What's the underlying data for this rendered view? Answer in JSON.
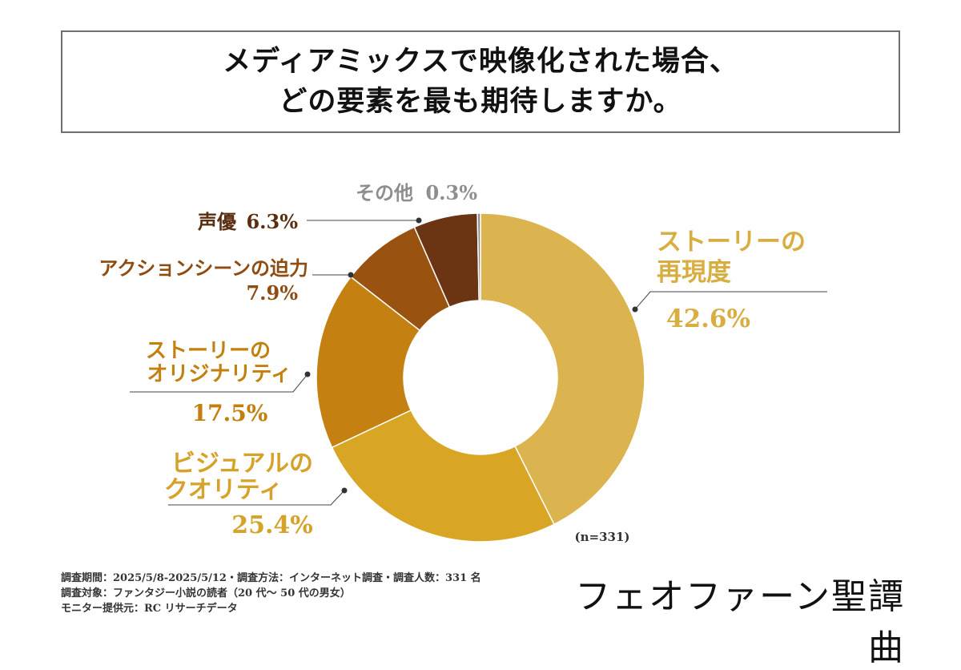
{
  "title": {
    "line1": "メディアミックスで映像化された場合、",
    "line2": "どの要素を最も期待しますか。"
  },
  "chart_data": {
    "type": "pie",
    "subtype": "donut",
    "title": "メディアミックスで映像化された場合、どの要素を最も期待しますか。",
    "sample_size_label": "(n=331)",
    "slices": [
      {
        "label_lines": [
          "ストーリーの",
          "再現度"
        ],
        "value": 42.6,
        "value_label": "42.6%",
        "color": "#DBB44F",
        "text_color": "#D8AE42"
      },
      {
        "label_lines": [
          "ビジュアルの",
          "クオリティ"
        ],
        "value": 25.4,
        "value_label": "25.4%",
        "color": "#D9A525",
        "text_color": "#D6A22A"
      },
      {
        "label_lines": [
          "ストーリーの",
          "オリジナリティ"
        ],
        "value": 17.5,
        "value_label": "17.5%",
        "color": "#C58012",
        "text_color": "#C3800F"
      },
      {
        "label_lines": [
          "アクションシーンの迫力"
        ],
        "value": 7.9,
        "value_label": "7.9%",
        "color": "#9A5210",
        "text_color": "#8E4C12"
      },
      {
        "label_lines": [
          "声優"
        ],
        "value": 6.3,
        "value_label": "6.3%",
        "color": "#6B3513",
        "text_color": "#5B2E12"
      },
      {
        "label_lines": [
          "その他"
        ],
        "value": 0.3,
        "value_label": "0.3%",
        "color": "#8C8C8C",
        "text_color": "#8E8E8E"
      }
    ]
  },
  "footer": {
    "line1": "調査期間：2025/5/8-2025/5/12・調査方法：インターネット調査・調査人数：331 名",
    "line2": "調査対象：ファンタジー小説の読者（20 代〜 50 代の男女）",
    "line3": "モニター提供元：RC リサーチデータ"
  },
  "brand": "フェオファーン聖譚曲"
}
